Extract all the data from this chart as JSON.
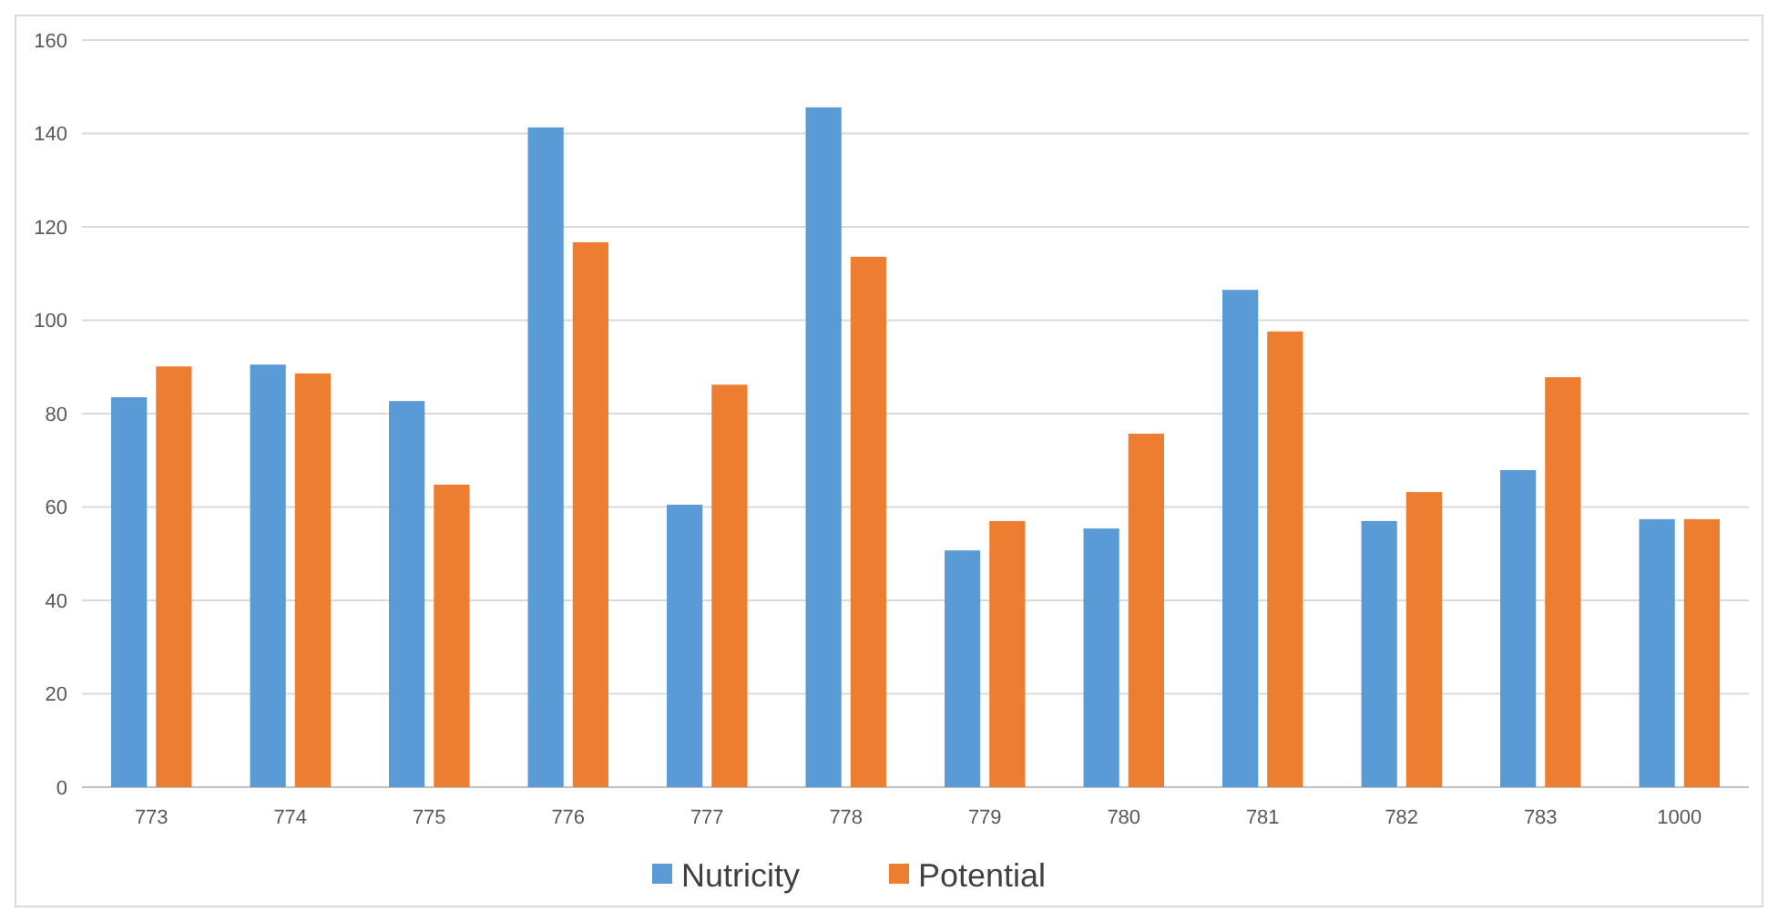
{
  "chart_data": {
    "type": "bar",
    "categories": [
      "773",
      "774",
      "775",
      "776",
      "777",
      "778",
      "779",
      "780",
      "781",
      "782",
      "783",
      "1000"
    ],
    "series": [
      {
        "name": "Nutricity",
        "color": "#5b9bd5",
        "values": [
          83.5,
          90.5,
          82.7,
          141.3,
          60.5,
          145.6,
          50.7,
          55.4,
          106.5,
          57,
          67.9,
          57.4
        ]
      },
      {
        "name": "Potential",
        "color": "#ed7d31",
        "values": [
          90.1,
          88.6,
          64.8,
          116.7,
          86.2,
          113.6,
          57,
          75.7,
          97.6,
          63.2,
          87.8,
          57.4
        ]
      }
    ],
    "ylim": [
      0,
      160
    ],
    "yticks": [
      0,
      20,
      40,
      60,
      80,
      100,
      120,
      140,
      160
    ],
    "grid": "y",
    "legend": "bottom"
  }
}
